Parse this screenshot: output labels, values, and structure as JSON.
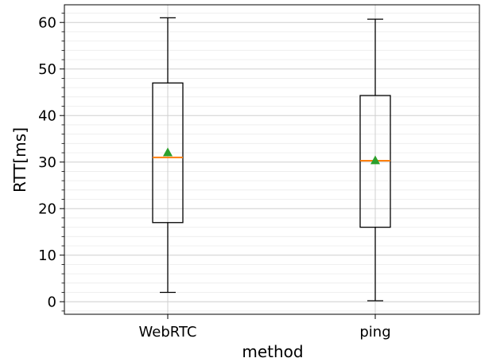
{
  "chart_data": {
    "type": "box",
    "xlabel": "method",
    "ylabel": "RTT[ms]",
    "ylim": [
      -2.7,
      63.8
    ],
    "yticks": [
      0,
      10,
      20,
      30,
      40,
      50,
      60
    ],
    "ytick_labels": [
      "0",
      "10",
      "20",
      "30",
      "40",
      "50",
      "60"
    ],
    "grid": {
      "major": true,
      "minor": true,
      "minor_step": 2
    },
    "categories": [
      "WebRTC",
      "ping"
    ],
    "boxes": [
      {
        "category": "WebRTC",
        "whisker_low": 2.0,
        "q1": 17.0,
        "median": 31.0,
        "mean": 32.1,
        "q3": 47.0,
        "whisker_high": 61.0
      },
      {
        "category": "ping",
        "whisker_low": 0.2,
        "q1": 16.0,
        "median": 30.3,
        "mean": 30.4,
        "q3": 44.3,
        "whisker_high": 60.7
      }
    ],
    "colors": {
      "box": "#000000",
      "median": "#ff7f0e",
      "mean": "#2ca02c",
      "grid_major": "#cfcfcf",
      "grid_minor": "#ebebeb"
    }
  }
}
